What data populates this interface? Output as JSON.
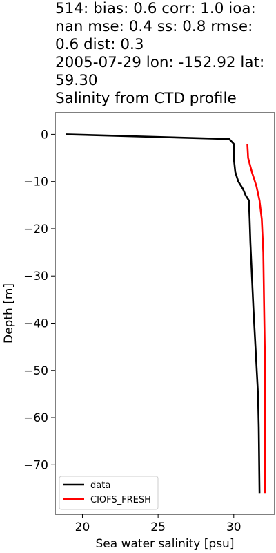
{
  "chart_data": {
    "type": "line",
    "title": "514: bias: 0.6  corr: 1.0  ioa:\nnan  mse: 0.4  ss: 0.8  rmse:\n0.6  dist: 0.3\n2005-07-29 lon: -152.92 lat:\n59.30\nSalinity from CTD profile",
    "xlabel": "Sea water salinity [psu]",
    "ylabel": "Depth [m]",
    "xlim": [
      18.2,
      32.7
    ],
    "ylim": [
      -80.5,
      4.6
    ],
    "xticks": [
      20,
      25,
      30
    ],
    "yticks": [
      0,
      -10,
      -20,
      -30,
      -40,
      -50,
      -60,
      -70
    ],
    "legend_position": "lower-left",
    "grid": false,
    "series": [
      {
        "name": "data",
        "color": "#000000",
        "x": [
          18.9,
          29.7,
          30.0,
          30.0,
          30.1,
          30.3,
          30.6,
          30.8,
          31.0,
          31.05,
          31.1,
          31.2,
          31.3,
          31.4,
          31.5,
          31.55,
          31.6,
          31.65,
          31.7
        ],
        "y": [
          0,
          -1,
          -2,
          -5,
          -8,
          -10,
          -11.5,
          -13,
          -14,
          -18,
          -23,
          -30,
          -37,
          -43,
          -49,
          -52,
          -55,
          -62,
          -76
        ]
      },
      {
        "name": "CIOFS_FRESH",
        "color": "#ff0000",
        "x": [
          30.9,
          30.95,
          31.2,
          31.5,
          31.7,
          31.85,
          31.95,
          32.0,
          32.05,
          32.05,
          32.05
        ],
        "y": [
          -2,
          -5,
          -8,
          -11,
          -14,
          -18,
          -25,
          -35,
          -45,
          -60,
          -76
        ]
      }
    ]
  }
}
